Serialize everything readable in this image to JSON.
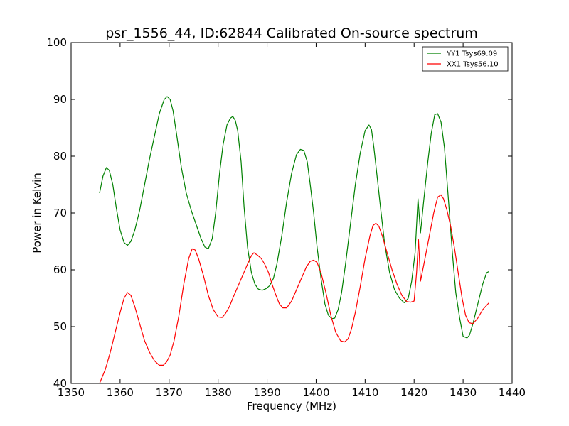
{
  "chart_data": {
    "type": "line",
    "title": "psr_1556_44, ID:62844 Calibrated On-source spectrum",
    "xlabel": "Frequency (MHz)",
    "ylabel": "Power in Kelvin",
    "xlim": [
      1350,
      1440
    ],
    "ylim": [
      40,
      100
    ],
    "xticks": [
      1350,
      1360,
      1370,
      1380,
      1390,
      1400,
      1410,
      1420,
      1430,
      1440
    ],
    "yticks": [
      40,
      50,
      60,
      70,
      80,
      90,
      100
    ],
    "grid": false,
    "legend_position": "top-right",
    "series": [
      {
        "name": "YY1 Tsys69.09",
        "color": "#008000",
        "x": [
          1355.8,
          1356.5,
          1357.2,
          1357.8,
          1358.5,
          1359.2,
          1360.0,
          1360.8,
          1361.5,
          1362.2,
          1363.0,
          1364.0,
          1365.0,
          1366.0,
          1367.0,
          1368.0,
          1369.0,
          1369.6,
          1370.2,
          1370.8,
          1371.5,
          1372.5,
          1373.5,
          1374.5,
          1375.5,
          1376.5,
          1377.3,
          1378.0,
          1378.8,
          1379.5,
          1380.3,
          1381.0,
          1381.8,
          1382.5,
          1383.0,
          1383.5,
          1384.0,
          1384.7,
          1385.3,
          1386.0,
          1386.8,
          1387.5,
          1388.2,
          1389.0,
          1389.8,
          1390.5,
          1391.3,
          1392.0,
          1393.0,
          1394.0,
          1395.0,
          1396.0,
          1396.8,
          1397.5,
          1398.2,
          1398.8,
          1399.5,
          1400.2,
          1401.0,
          1401.8,
          1402.5,
          1403.2,
          1403.8,
          1404.5,
          1405.2,
          1406.0,
          1407.0,
          1408.0,
          1409.0,
          1410.0,
          1410.8,
          1411.3,
          1411.8,
          1412.5,
          1413.2,
          1414.0,
          1415.0,
          1416.0,
          1417.0,
          1418.0,
          1418.8,
          1419.5,
          1420.2,
          1420.8,
          1421.3,
          1422.0,
          1422.8,
          1423.5,
          1424.2,
          1424.8,
          1425.5,
          1426.2,
          1427.0,
          1427.8,
          1428.5,
          1429.3,
          1430.0,
          1430.8,
          1431.3,
          1432.0,
          1433.0,
          1434.0,
          1434.8,
          1435.3
        ],
        "y": [
          73.5,
          76.5,
          78.0,
          77.5,
          75.0,
          71.0,
          67.0,
          64.8,
          64.3,
          65.0,
          67.0,
          70.5,
          75.0,
          79.5,
          83.5,
          87.5,
          90.0,
          90.5,
          90.0,
          88.0,
          84.0,
          78.0,
          73.5,
          70.5,
          68.0,
          65.5,
          64.0,
          63.7,
          65.5,
          70.0,
          77.0,
          82.0,
          85.5,
          86.7,
          87.0,
          86.3,
          84.5,
          79.0,
          71.0,
          64.0,
          59.5,
          57.5,
          56.6,
          56.4,
          56.7,
          57.2,
          58.5,
          61.0,
          66.0,
          72.0,
          77.0,
          80.3,
          81.2,
          81.0,
          79.0,
          75.0,
          70.0,
          64.0,
          58.5,
          54.0,
          52.0,
          51.4,
          51.5,
          53.0,
          56.0,
          61.0,
          68.0,
          75.0,
          80.5,
          84.5,
          85.5,
          84.7,
          81.5,
          76.0,
          70.5,
          64.5,
          59.5,
          56.5,
          55.0,
          54.2,
          55.0,
          58.0,
          63.0,
          72.5,
          66.5,
          72.5,
          79.0,
          84.0,
          87.3,
          87.5,
          86.0,
          81.5,
          72.5,
          63.0,
          56.0,
          51.5,
          48.3,
          48.0,
          48.5,
          50.5,
          54.0,
          57.5,
          59.5,
          59.7
        ]
      },
      {
        "name": "XX1 Tsys56.10",
        "color": "#ff0000",
        "x": [
          1355.8,
          1357.0,
          1358.0,
          1359.0,
          1360.0,
          1360.8,
          1361.5,
          1362.2,
          1363.0,
          1364.0,
          1365.0,
          1366.0,
          1367.0,
          1368.0,
          1368.8,
          1369.5,
          1370.2,
          1371.0,
          1372.0,
          1373.0,
          1374.0,
          1374.7,
          1375.3,
          1376.0,
          1377.0,
          1378.0,
          1379.0,
          1380.0,
          1380.8,
          1381.5,
          1382.3,
          1383.0,
          1384.0,
          1385.0,
          1386.0,
          1386.8,
          1387.3,
          1388.0,
          1388.8,
          1389.5,
          1390.3,
          1391.0,
          1391.8,
          1392.5,
          1393.2,
          1394.0,
          1395.0,
          1396.0,
          1397.0,
          1398.0,
          1398.8,
          1399.5,
          1400.2,
          1401.0,
          1402.0,
          1403.0,
          1404.0,
          1405.0,
          1405.8,
          1406.5,
          1407.2,
          1408.0,
          1409.0,
          1410.0,
          1411.0,
          1411.6,
          1412.2,
          1412.8,
          1413.5,
          1414.5,
          1415.5,
          1416.5,
          1417.5,
          1418.5,
          1419.3,
          1420.0,
          1420.5,
          1420.9,
          1421.3,
          1422.0,
          1423.0,
          1424.0,
          1424.8,
          1425.5,
          1426.0,
          1426.7,
          1427.5,
          1428.3,
          1429.0,
          1429.8,
          1430.5,
          1431.2,
          1432.0,
          1433.0,
          1434.0,
          1435.3
        ],
        "y": [
          40.0,
          42.5,
          45.5,
          49.0,
          52.5,
          55.0,
          56.0,
          55.5,
          53.5,
          50.5,
          47.5,
          45.5,
          44.0,
          43.2,
          43.2,
          43.8,
          45.0,
          47.5,
          52.0,
          57.5,
          62.0,
          63.7,
          63.5,
          62.0,
          59.0,
          55.5,
          53.0,
          51.7,
          51.6,
          52.3,
          53.5,
          55.0,
          57.0,
          59.0,
          61.0,
          62.5,
          63.0,
          62.6,
          62.0,
          61.0,
          59.5,
          57.5,
          55.5,
          54.0,
          53.3,
          53.3,
          54.5,
          56.5,
          58.5,
          60.5,
          61.5,
          61.7,
          61.3,
          59.5,
          56.0,
          52.0,
          49.0,
          47.5,
          47.3,
          47.8,
          49.5,
          52.5,
          57.0,
          62.0,
          66.0,
          67.8,
          68.2,
          67.7,
          66.0,
          63.0,
          60.0,
          57.5,
          55.5,
          54.4,
          54.3,
          54.5,
          59.5,
          65.3,
          58.0,
          61.0,
          65.5,
          70.0,
          72.8,
          73.2,
          72.5,
          70.5,
          67.5,
          63.5,
          59.5,
          55.0,
          52.0,
          50.7,
          50.5,
          51.5,
          53.0,
          54.2
        ]
      }
    ]
  }
}
